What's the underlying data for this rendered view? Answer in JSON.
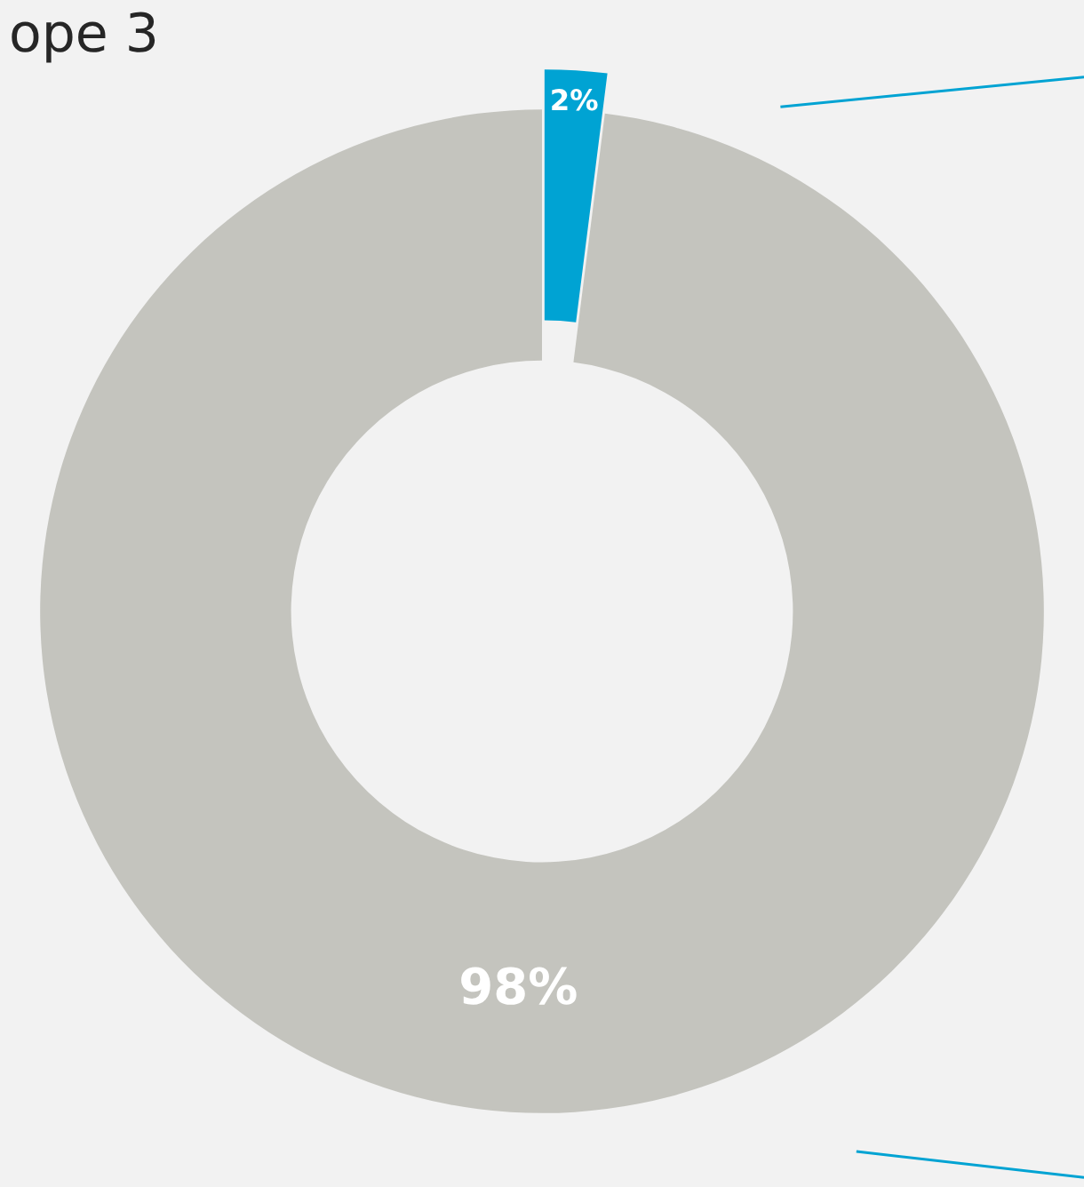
{
  "chart_data": {
    "type": "donut",
    "annotations": [
      "ope 3"
    ],
    "categories": [
      null,
      null
    ],
    "values": [
      2,
      98
    ],
    "colors": [
      "#00a3d3",
      "#c4c4be"
    ],
    "value_labels": [
      "2%",
      "98%"
    ],
    "legend": false
  }
}
